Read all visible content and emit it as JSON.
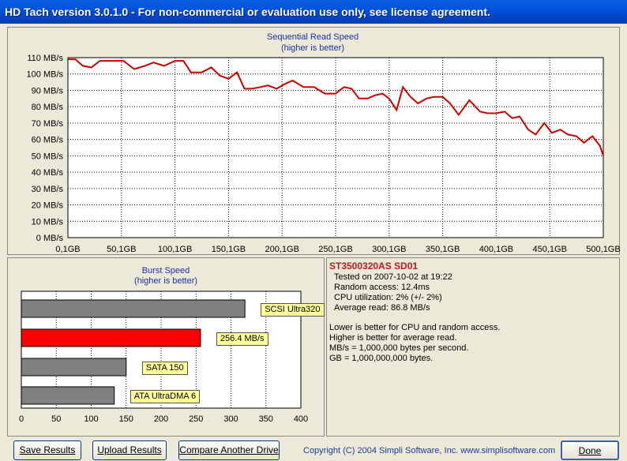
{
  "window": {
    "title": "HD Tach version 3.0.1.0  - For non-commercial or evaluation use only, see license agreement."
  },
  "seq_chart": {
    "title": "Sequential Read Speed",
    "subtitle": "(higher is better)",
    "y_ticks": [
      "0 MB/s",
      "10 MB/s",
      "20 MB/s",
      "30 MB/s",
      "40 MB/s",
      "50 MB/s",
      "60 MB/s",
      "70 MB/s",
      "80 MB/s",
      "90 MB/s",
      "100 MB/s",
      "110 MB/s"
    ],
    "x_ticks": [
      "0,1GB",
      "50,1GB",
      "100,1GB",
      "150,1GB",
      "200,1GB",
      "250,1GB",
      "300,1GB",
      "350,1GB",
      "400,1GB",
      "450,1GB",
      "500,1GB"
    ],
    "line_color": "#cc0000"
  },
  "burst_chart": {
    "title": "Burst Speed",
    "subtitle": "(higher is better)",
    "x_ticks": [
      "0",
      "50",
      "100",
      "150",
      "200",
      "250",
      "300",
      "350",
      "400"
    ],
    "bars": [
      {
        "label": "SCSI Ultra320",
        "value": 320,
        "color": "#808080"
      },
      {
        "label": "256.4 MB/s",
        "value": 256.4,
        "color": "#ff0000"
      },
      {
        "label": "SATA 150",
        "value": 150,
        "color": "#808080"
      },
      {
        "label": "ATA UltraDMA 6",
        "value": 133,
        "color": "#808080"
      }
    ]
  },
  "info": {
    "drive_name": "ST3500320AS SD01",
    "tested_on": "Tested on 2007-10-02 at 19:22",
    "random_access": "Random access: 12.4ms",
    "cpu": "CPU utilization: 2% (+/- 2%)",
    "avg_read": "Average read: 86.8 MB/s",
    "note1": "Lower is better for CPU and random access.",
    "note2": "Higher is better for average read.",
    "note3": "MB/s = 1,000,000 bytes per second.",
    "note4": "GB = 1,000,000,000 bytes."
  },
  "buttons": {
    "save": "Save Results",
    "upload": "Upload Results",
    "compare": "Compare Another Drive",
    "done": "Done"
  },
  "footer": {
    "copyright": "Copyright (C) 2004 Simpli Software, Inc. www.simplisoftware.com"
  },
  "chart_data": [
    {
      "type": "line",
      "title": "Sequential Read Speed",
      "subtitle": "(higher is better)",
      "xlabel": "",
      "ylabel": "",
      "xlim": [
        0.1,
        500.1
      ],
      "ylim": [
        0,
        110
      ],
      "grid": true,
      "series": [
        {
          "x": [
            0.1,
            7,
            14,
            22,
            30,
            40,
            52,
            62,
            72,
            80,
            90,
            100,
            108,
            115,
            125,
            134,
            142,
            150,
            158,
            165,
            172,
            180,
            187,
            195,
            203,
            210,
            220,
            230,
            240,
            250,
            258,
            265,
            272,
            280,
            287,
            294,
            300,
            307,
            313,
            320,
            327,
            335,
            342,
            350,
            357,
            365,
            375,
            385,
            392,
            400,
            408,
            415,
            422,
            430,
            437,
            445,
            452,
            460,
            467,
            475,
            482,
            490,
            497,
            500.1
          ],
          "values": [
            109,
            109,
            105,
            104,
            108,
            108,
            108,
            103,
            105,
            107,
            105,
            108,
            108,
            101,
            101,
            104,
            99,
            97,
            101,
            91,
            91,
            92,
            93,
            91,
            94,
            96,
            92,
            92,
            88,
            88,
            92,
            91,
            85,
            85,
            87,
            88,
            85,
            78,
            92,
            86,
            82,
            85,
            86,
            86,
            82,
            75,
            84,
            77,
            76,
            76,
            77,
            73,
            74,
            66,
            63,
            70,
            64,
            66,
            63,
            62,
            58,
            62,
            56,
            50
          ]
        }
      ]
    },
    {
      "type": "bar",
      "title": "Burst Speed",
      "subtitle": "(higher is better)",
      "orientation": "horizontal",
      "xlim": [
        0,
        400
      ],
      "categories": [
        "SCSI Ultra320",
        "256.4 MB/s",
        "SATA 150",
        "ATA UltraDMA 6"
      ],
      "values": [
        320,
        256.4,
        150,
        133
      ]
    }
  ]
}
